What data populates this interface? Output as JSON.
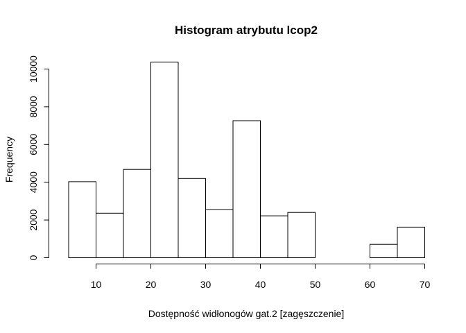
{
  "chart_data": {
    "type": "bar",
    "title": "Histogram atrybutu lcop2",
    "xlabel": "Dostępność widłonogów gat.2 [zagęszczenie]",
    "ylabel": "Frequency",
    "bins": [
      {
        "start": 5,
        "end": 10,
        "count": 4030
      },
      {
        "start": 10,
        "end": 15,
        "count": 2360
      },
      {
        "start": 15,
        "end": 20,
        "count": 4680
      },
      {
        "start": 20,
        "end": 25,
        "count": 10370
      },
      {
        "start": 25,
        "end": 30,
        "count": 4200
      },
      {
        "start": 30,
        "end": 35,
        "count": 2550
      },
      {
        "start": 35,
        "end": 40,
        "count": 7260
      },
      {
        "start": 40,
        "end": 45,
        "count": 2220
      },
      {
        "start": 45,
        "end": 50,
        "count": 2400
      },
      {
        "start": 50,
        "end": 55,
        "count": 0
      },
      {
        "start": 55,
        "end": 60,
        "count": 0
      },
      {
        "start": 60,
        "end": 65,
        "count": 710
      },
      {
        "start": 65,
        "end": 70,
        "count": 1620
      }
    ],
    "xlim": [
      5,
      70
    ],
    "ylim": [
      0,
      10370
    ],
    "xticks": [
      10,
      20,
      30,
      40,
      50,
      60,
      70
    ],
    "yticks": [
      0,
      2000,
      4000,
      6000,
      8000,
      10000
    ],
    "grid": false
  }
}
